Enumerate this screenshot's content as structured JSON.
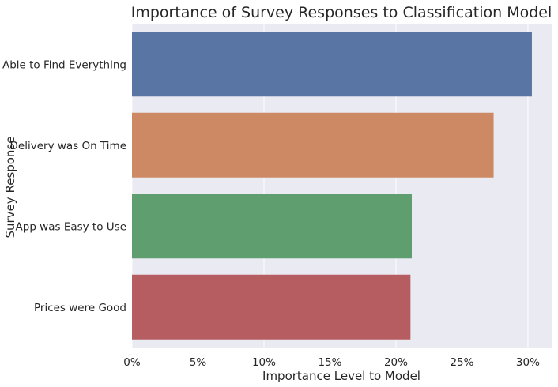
{
  "chart_data": {
    "type": "bar",
    "orientation": "horizontal",
    "title": "Importance of Survey Responses to Classification Model",
    "xlabel": "Importance Level to Model",
    "ylabel": "Survey Response",
    "categories": [
      "Able to Find Everything",
      "Delivery was On Time",
      "App was Easy to Use",
      "Prices were Good"
    ],
    "values": [
      0.303,
      0.274,
      0.212,
      0.211
    ],
    "xlim": [
      0,
      0.318
    ],
    "xticks": [
      0,
      0.05,
      0.1,
      0.15,
      0.2,
      0.25,
      0.3
    ],
    "xtick_labels": [
      "0%",
      "5%",
      "10%",
      "15%",
      "20%",
      "25%",
      "30%"
    ],
    "colors": [
      "#5975a4",
      "#cc8963",
      "#5f9e6e",
      "#b55d60"
    ],
    "background": "#eaeaf2",
    "grid": "on (vertical, white)",
    "legend": "none"
  }
}
